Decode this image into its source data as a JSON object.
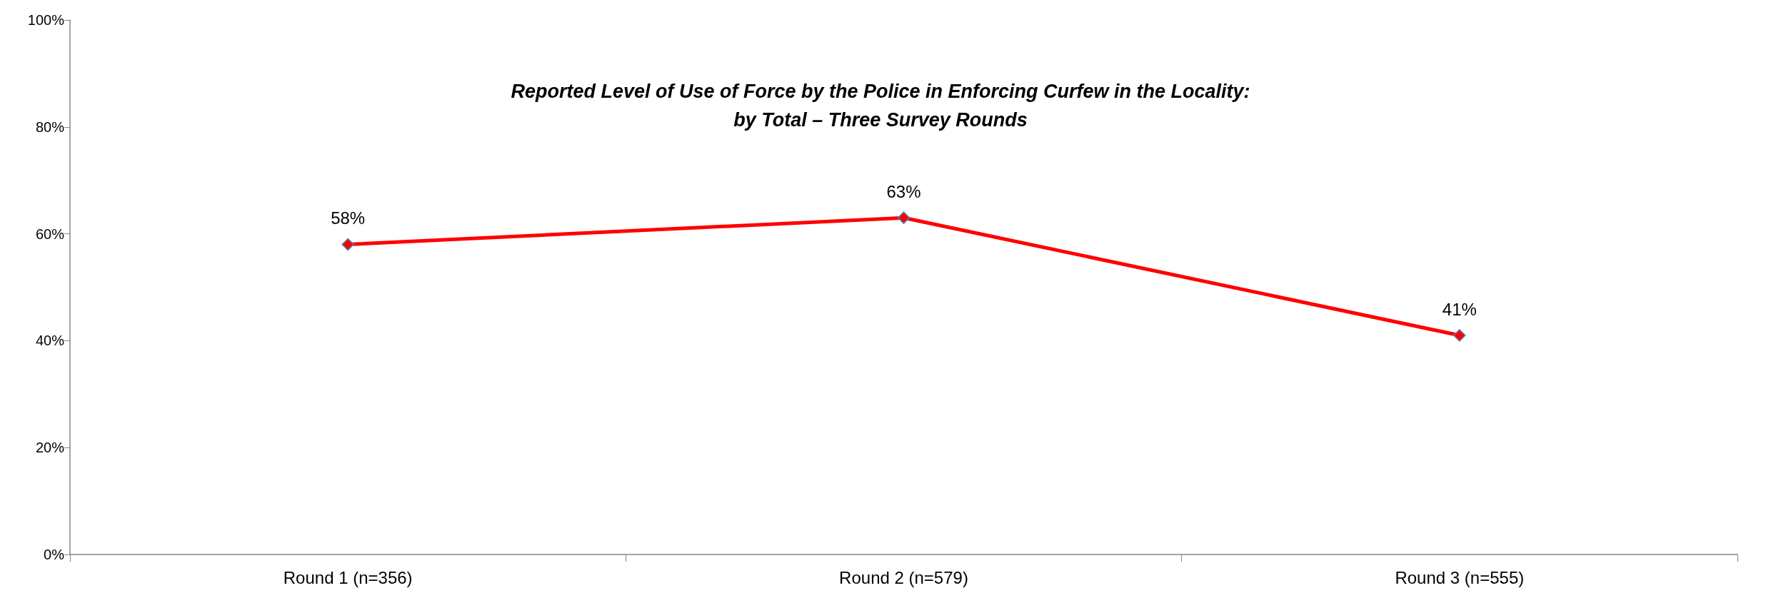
{
  "chart_data": {
    "type": "line",
    "title": "Reported Level of Use of Force by the Police in Enforcing Curfew in the Locality:\nby Total – Three Survey Rounds",
    "categories": [
      "Round 1 (n=356)",
      "Round 2 (n=579)",
      "Round 3 (n=555)"
    ],
    "series": [
      {
        "color": "#ff0000",
        "values": [
          58,
          63,
          41
        ],
        "value_labels": [
          "58%",
          "63%",
          "41%"
        ]
      }
    ],
    "ylim": [
      0,
      100
    ],
    "yticks": [
      {
        "value": 0,
        "label": "0%"
      },
      {
        "value": 20,
        "label": "20%"
      },
      {
        "value": 40,
        "label": "40%"
      },
      {
        "value": 60,
        "label": "60%"
      },
      {
        "value": 80,
        "label": "80%"
      },
      {
        "value": 100,
        "label": "100%"
      }
    ],
    "marker": "diamond",
    "line_style": "solid",
    "grid": false
  }
}
